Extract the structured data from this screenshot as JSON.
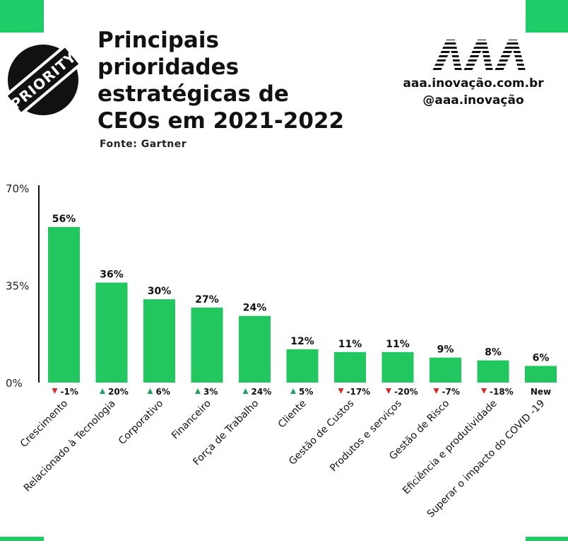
{
  "header": {
    "stamp_text": "PRIORITY",
    "title_lines": [
      "Principais",
      "prioridades",
      "estratégicas de",
      "CEOs em 2021-2022"
    ],
    "source": "Fonte: Gartner",
    "logo_text": "AAA",
    "website": "aaa.inovação.com.br",
    "instagram": "@aaa.inovação"
  },
  "colors": {
    "bar": "#22c760",
    "accent": "#20cc68",
    "up": "#1fa35a",
    "down": "#d62b2b"
  },
  "chart_data": {
    "type": "bar",
    "title": "Principais prioridades estratégicas de CEOs em 2021-2022",
    "categories": [
      "Crescimento",
      "Relacionado à Tecnologia",
      "Corporativo",
      "Financeiro",
      "Força de Trabalho",
      "Cliente",
      "Gestão de Custos",
      "Produtos e serviços",
      "Gestão de Risco",
      "Eficiência e produtividade",
      "Superar o impacto do COVID -19"
    ],
    "values": [
      56,
      36,
      30,
      27,
      24,
      12,
      11,
      11,
      9,
      8,
      6
    ],
    "value_labels": [
      "56%",
      "36%",
      "30%",
      "27%",
      "24%",
      "12%",
      "11%",
      "11%",
      "9%",
      "8%",
      "6%"
    ],
    "changes": [
      {
        "dir": "down",
        "label": "-1%"
      },
      {
        "dir": "up",
        "label": "20%"
      },
      {
        "dir": "up",
        "label": "6%"
      },
      {
        "dir": "up",
        "label": "3%"
      },
      {
        "dir": "up",
        "label": "24%"
      },
      {
        "dir": "up",
        "label": "5%"
      },
      {
        "dir": "down",
        "label": "-17%"
      },
      {
        "dir": "down",
        "label": "-20%"
      },
      {
        "dir": "down",
        "label": "-7%"
      },
      {
        "dir": "down",
        "label": "-18%"
      },
      {
        "dir": "none",
        "label": "New"
      }
    ],
    "yticks": [
      "0%",
      "35%",
      "70%"
    ],
    "ytick_values": [
      0,
      35,
      70
    ],
    "ylim": [
      0,
      70
    ],
    "grid": false,
    "legend": "none"
  }
}
